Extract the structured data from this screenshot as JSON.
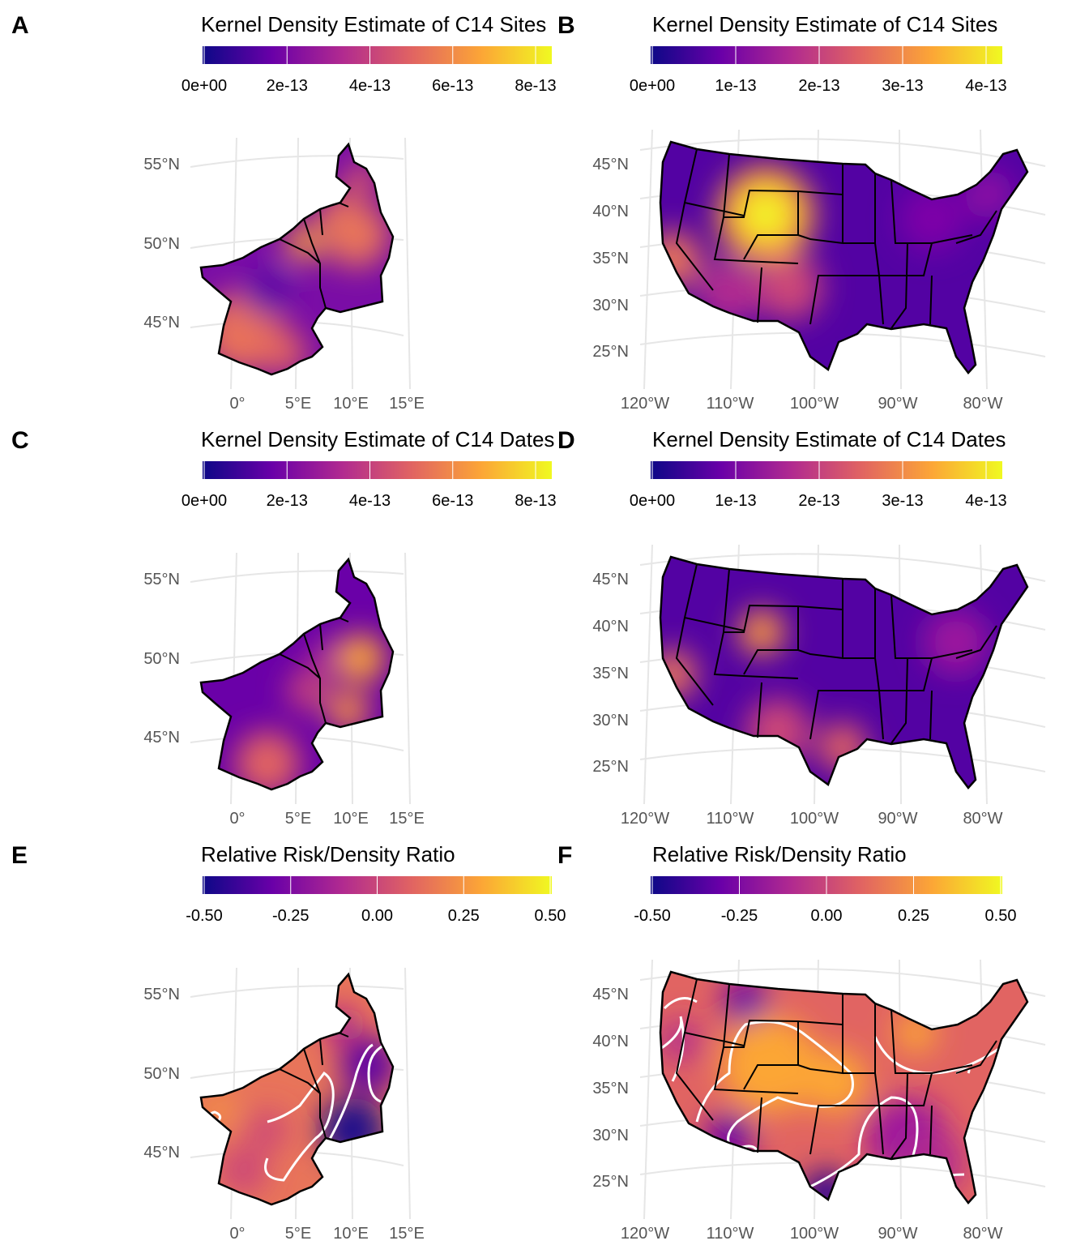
{
  "panels": [
    {
      "label": "A",
      "title": "Kernel Density Estimate of C14 Sites",
      "colorbar_ticks": [
        "0e+00",
        "2e-13",
        "4e-13",
        "6e-13",
        "8e-13"
      ],
      "lat_labels": [
        "55°N",
        "50°N",
        "45°N"
      ],
      "lon_labels": [
        "0°",
        "5°E",
        "10°E",
        "15°E"
      ]
    },
    {
      "label": "B",
      "title": "Kernel Density Estimate of C14 Sites",
      "colorbar_ticks": [
        "0e+00",
        "1e-13",
        "2e-13",
        "3e-13",
        "4e-13"
      ],
      "lat_labels": [
        "45°N",
        "40°N",
        "35°N",
        "30°N",
        "25°N"
      ],
      "lon_labels": [
        "120°W",
        "110°W",
        "100°W",
        "90°W",
        "80°W"
      ]
    },
    {
      "label": "C",
      "title": "Kernel Density Estimate of C14 Dates",
      "colorbar_ticks": [
        "0e+00",
        "2e-13",
        "4e-13",
        "6e-13",
        "8e-13"
      ],
      "lat_labels": [
        "55°N",
        "50°N",
        "45°N"
      ],
      "lon_labels": [
        "0°",
        "5°E",
        "10°E",
        "15°E"
      ]
    },
    {
      "label": "D",
      "title": "Kernel Density Estimate of C14 Dates",
      "colorbar_ticks": [
        "0e+00",
        "1e-13",
        "2e-13",
        "3e-13",
        "4e-13"
      ],
      "lat_labels": [
        "45°N",
        "40°N",
        "35°N",
        "30°N",
        "25°N"
      ],
      "lon_labels": [
        "120°W",
        "110°W",
        "100°W",
        "90°W",
        "80°W"
      ]
    },
    {
      "label": "E",
      "title": "Relative Risk/Density Ratio",
      "colorbar_ticks": [
        "-0.50",
        "-0.25",
        "0.00",
        "0.25",
        "0.50"
      ],
      "lat_labels": [
        "55°N",
        "50°N",
        "45°N"
      ],
      "lon_labels": [
        "0°",
        "5°E",
        "10°E",
        "15°E"
      ]
    },
    {
      "label": "F",
      "title": "Relative Risk/Density Ratio",
      "colorbar_ticks": [
        "-0.50",
        "-0.25",
        "0.00",
        "0.25",
        "0.50"
      ],
      "lat_labels": [
        "45°N",
        "40°N",
        "35°N",
        "30°N",
        "25°N"
      ],
      "lon_labels": [
        "120°W",
        "110°W",
        "100°W",
        "90°W",
        "80°W"
      ]
    }
  ]
}
